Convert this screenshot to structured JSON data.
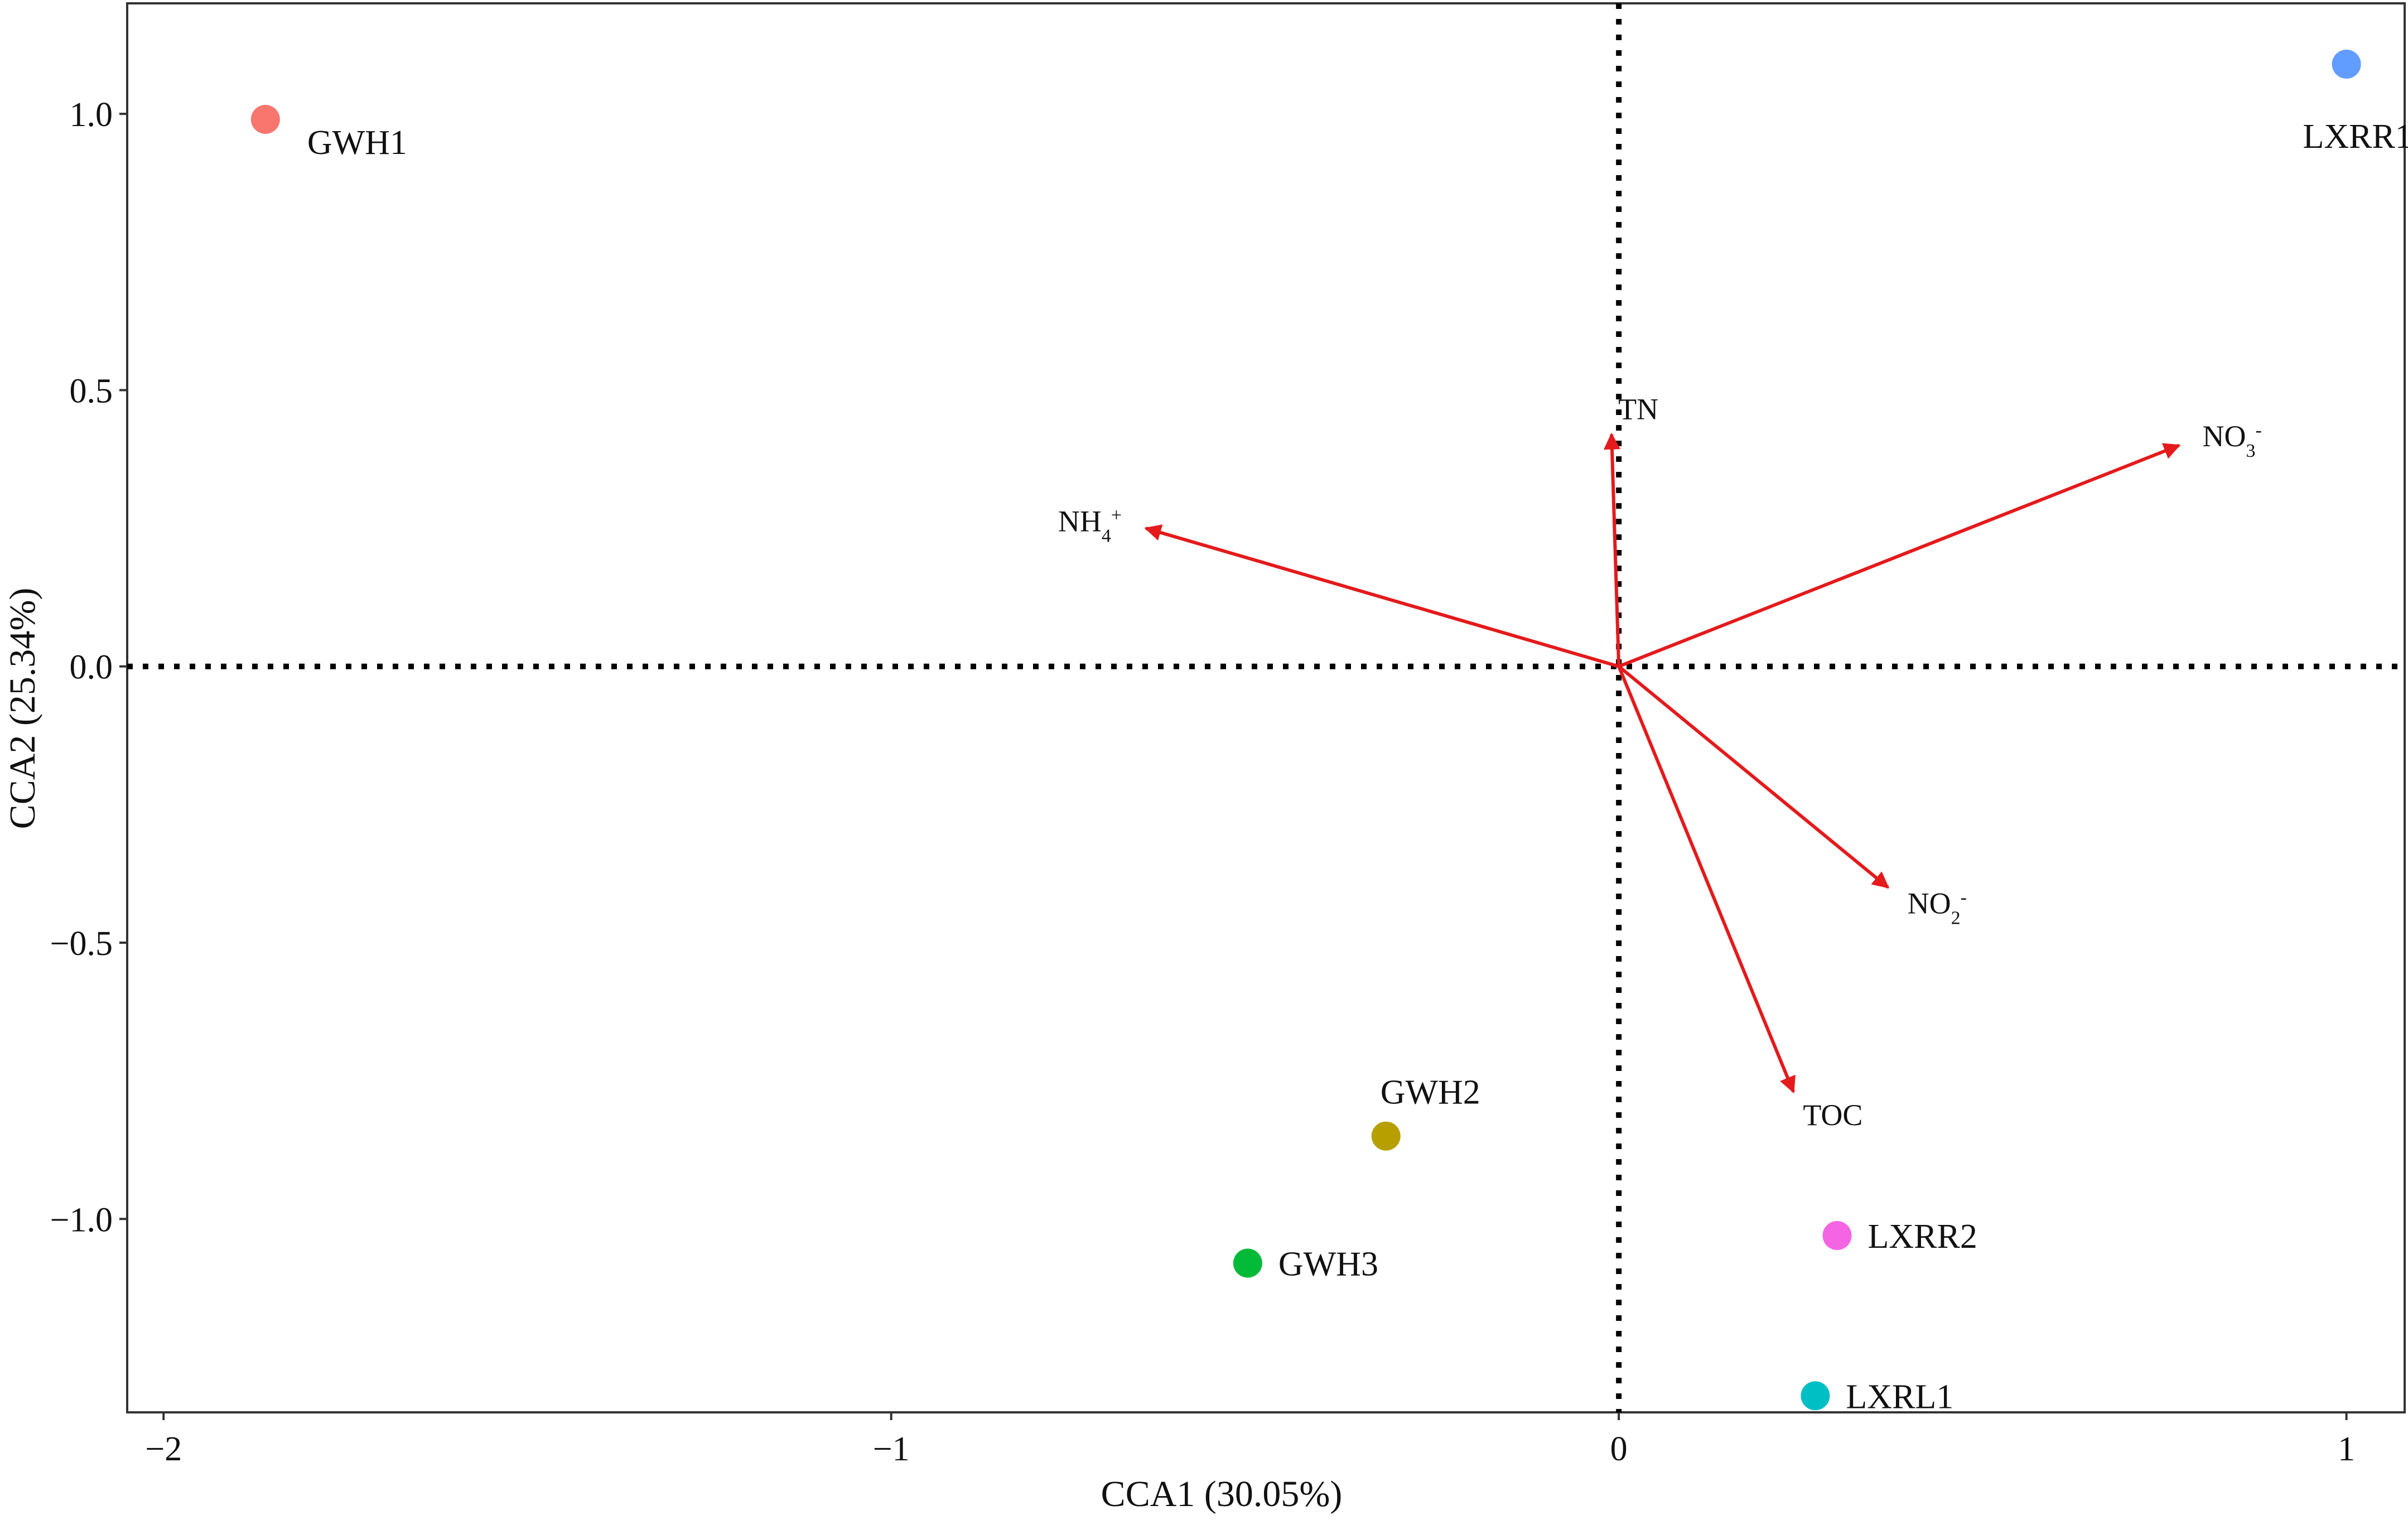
{
  "chart_data": {
    "type": "scatter",
    "title": "",
    "xlabel": "CCA1 (30.05%)",
    "ylabel": "CCA2 (25.34%)",
    "xlim": [
      -2.05,
      1.08
    ],
    "ylim": [
      -1.35,
      1.2
    ],
    "xticks": [
      -2,
      -1,
      0,
      1
    ],
    "xtick_labels": [
      "−2",
      "−1",
      "0",
      "1"
    ],
    "yticks": [
      -1.0,
      -0.5,
      0.0,
      0.5,
      1.0
    ],
    "ytick_labels": [
      "−1.0",
      "−0.5",
      "0.0",
      "0.5",
      "1.0"
    ],
    "grid": false,
    "reference_lines": "dotted lines at x = 0 and y = 0",
    "points": [
      {
        "label": "GWH1",
        "x": -1.86,
        "y": 0.99,
        "color": "#F8766D"
      },
      {
        "label": "GWH2",
        "x": -0.32,
        "y": -0.85,
        "color": "#B79F00"
      },
      {
        "label": "GWH3",
        "x": -0.51,
        "y": -1.08,
        "color": "#00BA38"
      },
      {
        "label": "LXRR1",
        "x": 1.0,
        "y": 1.09,
        "color": "#619CFF"
      },
      {
        "label": "LXRR2",
        "x": 0.3,
        "y": -1.03,
        "color": "#F564E3"
      },
      {
        "label": "LXRL1",
        "x": 0.27,
        "y": -1.32,
        "color": "#00BFC4"
      }
    ],
    "vectors": [
      {
        "name": "TN",
        "base": "TN",
        "sub": "",
        "sup": "",
        "x": -0.01,
        "y": 0.42
      },
      {
        "name": "NH4+",
        "base": "NH",
        "sub": "4",
        "sup": "+",
        "x": -0.65,
        "y": 0.25
      },
      {
        "name": "NO3-",
        "base": "NO",
        "sub": "3",
        "sup": "-",
        "x": 0.77,
        "y": 0.4
      },
      {
        "name": "NO2-",
        "base": "NO",
        "sub": "2",
        "sup": "-",
        "x": 0.37,
        "y": -0.4
      },
      {
        "name": "TOC",
        "base": "TOC",
        "sub": "",
        "sup": "",
        "x": 0.24,
        "y": -0.77
      }
    ],
    "vector_color": "#E41A1C"
  }
}
